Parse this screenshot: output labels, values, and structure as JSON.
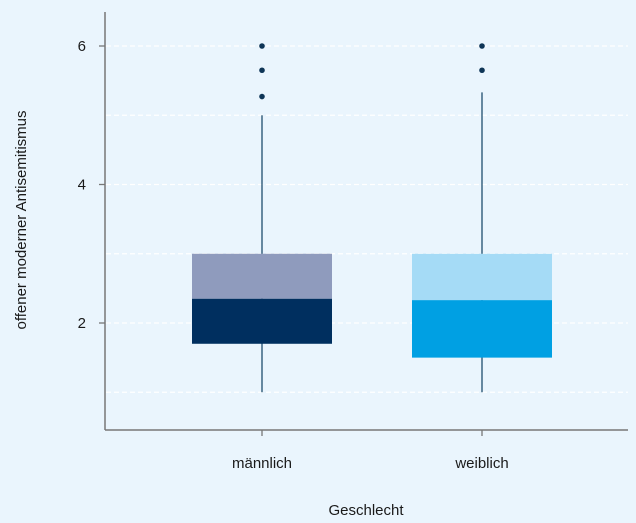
{
  "chart_data": {
    "type": "box",
    "title": "",
    "xlabel": "Geschlecht",
    "ylabel": "offener moderner Antisemitismus",
    "ylim": [
      0.6,
      6.5
    ],
    "yticks": [
      2,
      4,
      6
    ],
    "grid": true,
    "categories": [
      "männlich",
      "weiblich"
    ],
    "boxes": [
      {
        "category": "männlich",
        "whisker_low": 1.0,
        "q1": 1.7,
        "median": 2.35,
        "q3": 3.0,
        "whisker_high": 5.0,
        "outliers": [
          5.27,
          5.65,
          6.0
        ],
        "color_lower": "#002f5f",
        "color_upper": "#8f9bbd"
      },
      {
        "category": "weiblich",
        "whisker_low": 1.0,
        "q1": 1.5,
        "median": 2.33,
        "q3": 3.0,
        "whisker_high": 5.33,
        "outliers": [
          5.65,
          6.0
        ],
        "color_lower": "#00a0e3",
        "color_upper": "#a5dbf6"
      }
    ],
    "colors": {
      "background": "#eaf5fd",
      "axis": "#777777",
      "grid": "#ffffff",
      "whisker": "#1f4e6e",
      "outlier": "#0e3556"
    }
  }
}
